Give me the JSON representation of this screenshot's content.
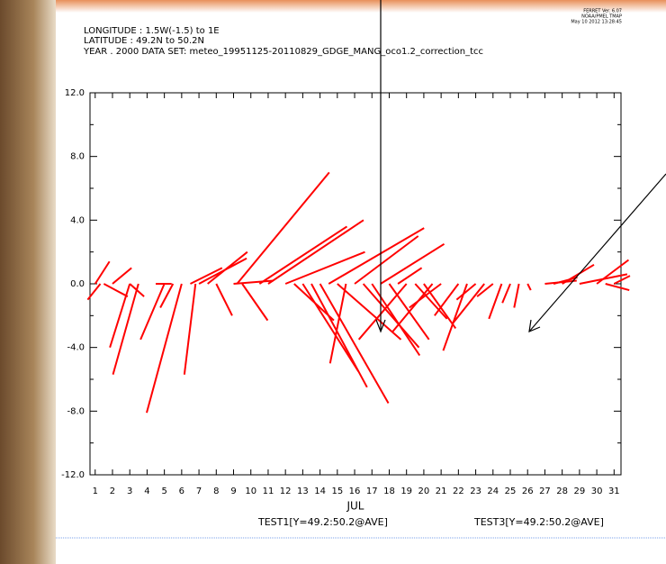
{
  "chart_data": {
    "type": "stick",
    "header": [
      "LONGITUDE : 1.5W(-1.5) to 1E",
      "LATITUDE : 49.2N to 50.2N",
      "YEAR . 2000 DATA SET: meteo_19951125-20110829_GDGE_MANG_oco1.2_correction_tcc"
    ],
    "stamp": [
      "FERRET Ver. 6.07",
      "NOAA/PMEL TMAP",
      "May 10 2012 13:28:45"
    ],
    "xlabel": "JUL",
    "footer_labels": [
      "TEST1[Y=49.2:50.2@AVE]",
      "TEST3[Y=49.2:50.2@AVE]"
    ],
    "color": "#ff0000",
    "x": [
      1,
      1.3,
      1.5,
      2,
      3,
      3,
      3.5,
      6,
      4.5,
      5,
      5.5,
      6.8,
      6.5,
      7,
      7.5,
      8,
      9,
      9.5,
      9.2,
      10.5,
      11,
      12,
      12.5,
      13,
      13.5,
      14,
      14.5,
      15,
      15.5,
      16,
      16.5,
      17,
      17.5,
      18,
      18.5,
      19,
      19.5,
      20,
      20.5,
      21,
      22,
      22.5,
      23,
      23.5,
      24,
      24.5,
      25,
      25.5,
      26,
      27,
      27.5,
      28,
      29,
      30,
      30.5,
      31
    ],
    "u": [
      0.9,
      -0.8,
      1.5,
      1.2,
      -1.25,
      0.9,
      -1.6,
      -2.2,
      1.0,
      -1.5,
      -0.8,
      -0.7,
      2.0,
      3.0,
      2.5,
      1.0,
      2.5,
      1.6,
      5.8,
      5.5,
      6.0,
      5.0,
      2.5,
      3.5,
      3.5,
      4.3,
      6.0,
      4.0,
      -1.0,
      4.0,
      3.5,
      3.0,
      4.0,
      2.5,
      1.5,
      -3.0,
      2.0,
      2.0,
      -2.5,
      -2.0,
      -1.5,
      -1.5,
      -1.2,
      -2.0,
      -1.0,
      -0.8,
      -0.5,
      -0.3,
      0.2,
      2.0,
      1.5,
      2.0,
      3.0,
      2.0,
      1.5,
      1.0
    ],
    "v": [
      1.4,
      -1.0,
      -0.8,
      1.0,
      -4.0,
      -0.8,
      -5.7,
      -8.1,
      0,
      -3.5,
      -1.5,
      -5.7,
      1.0,
      1.6,
      2.0,
      -2.0,
      0.2,
      -2.3,
      7.0,
      3.6,
      4.0,
      2.0,
      -2.3,
      -5.5,
      -6.5,
      -7.5,
      3.5,
      -3.5,
      -5.0,
      3.0,
      -4.0,
      -4.5,
      2.5,
      -3.5,
      1.0,
      -3.5,
      -2.2,
      -2.8,
      -3.0,
      -1.5,
      -2.0,
      -4.2,
      -1.0,
      -2.5,
      -0.8,
      -2.2,
      -1.2,
      -1.5,
      -0.4,
      0.2,
      0.4,
      1.2,
      0.6,
      1.5,
      -0.4,
      0.5
    ],
    "xlim": [
      0.7,
      31.4
    ],
    "ylim": [
      -12,
      12
    ],
    "yticks": [
      {
        "value": 12,
        "label": "12.0"
      },
      {
        "value": 8,
        "label": "8.0"
      },
      {
        "value": 4,
        "label": "4.0"
      },
      {
        "value": 0,
        "label": "0.0"
      },
      {
        "value": -4,
        "label": "-4.0"
      },
      {
        "value": -8,
        "label": "-8.0"
      },
      {
        "value": -12,
        "label": "-12.0"
      }
    ],
    "yminor": [
      10,
      6,
      2,
      -2,
      -6,
      -10
    ],
    "xticks": [
      1,
      2,
      3,
      4,
      5,
      6,
      7,
      8,
      9,
      10,
      11,
      12,
      13,
      14,
      15,
      16,
      17,
      18,
      19,
      20,
      21,
      22,
      23,
      24,
      25,
      26,
      27,
      28,
      29,
      30,
      31
    ]
  }
}
